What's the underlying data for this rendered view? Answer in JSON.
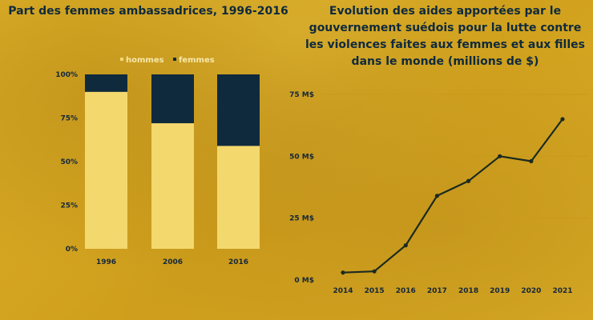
{
  "colors": {
    "background": "#d8a922",
    "hommes": "#f3d86e",
    "femmes": "#0f2a3d",
    "line": "#1b2a20",
    "title": "#0f2a3d"
  },
  "chart_data": [
    {
      "type": "bar",
      "stacked": true,
      "title": "Part des femmes ambassadrices, 1996-2016",
      "categories": [
        "1996",
        "2006",
        "2016"
      ],
      "series": [
        {
          "name": "hommes",
          "values": [
            90,
            72,
            59
          ]
        },
        {
          "name": "femmes",
          "values": [
            10,
            28,
            41
          ]
        }
      ],
      "yticks": [
        "0%",
        "25%",
        "50%",
        "75%",
        "100%"
      ],
      "ylim": [
        0,
        100
      ],
      "legend_position": "top",
      "grid": false
    },
    {
      "type": "line",
      "title": "Evolution des aides apportées par le gouvernement suédois pour la lutte contre les violences faites aux femmes et aux filles dans le monde (millions de $)",
      "x": [
        "2014",
        "2015",
        "2016",
        "2017",
        "2018",
        "2019",
        "2020",
        "2021"
      ],
      "series": [
        {
          "values": [
            3,
            3.5,
            14,
            34,
            40,
            50,
            48,
            65
          ]
        }
      ],
      "yticks": [
        "0 M$",
        "25 M$",
        "50 M$",
        "75 M$"
      ],
      "ylim": [
        0,
        75
      ],
      "grid": true
    }
  ]
}
